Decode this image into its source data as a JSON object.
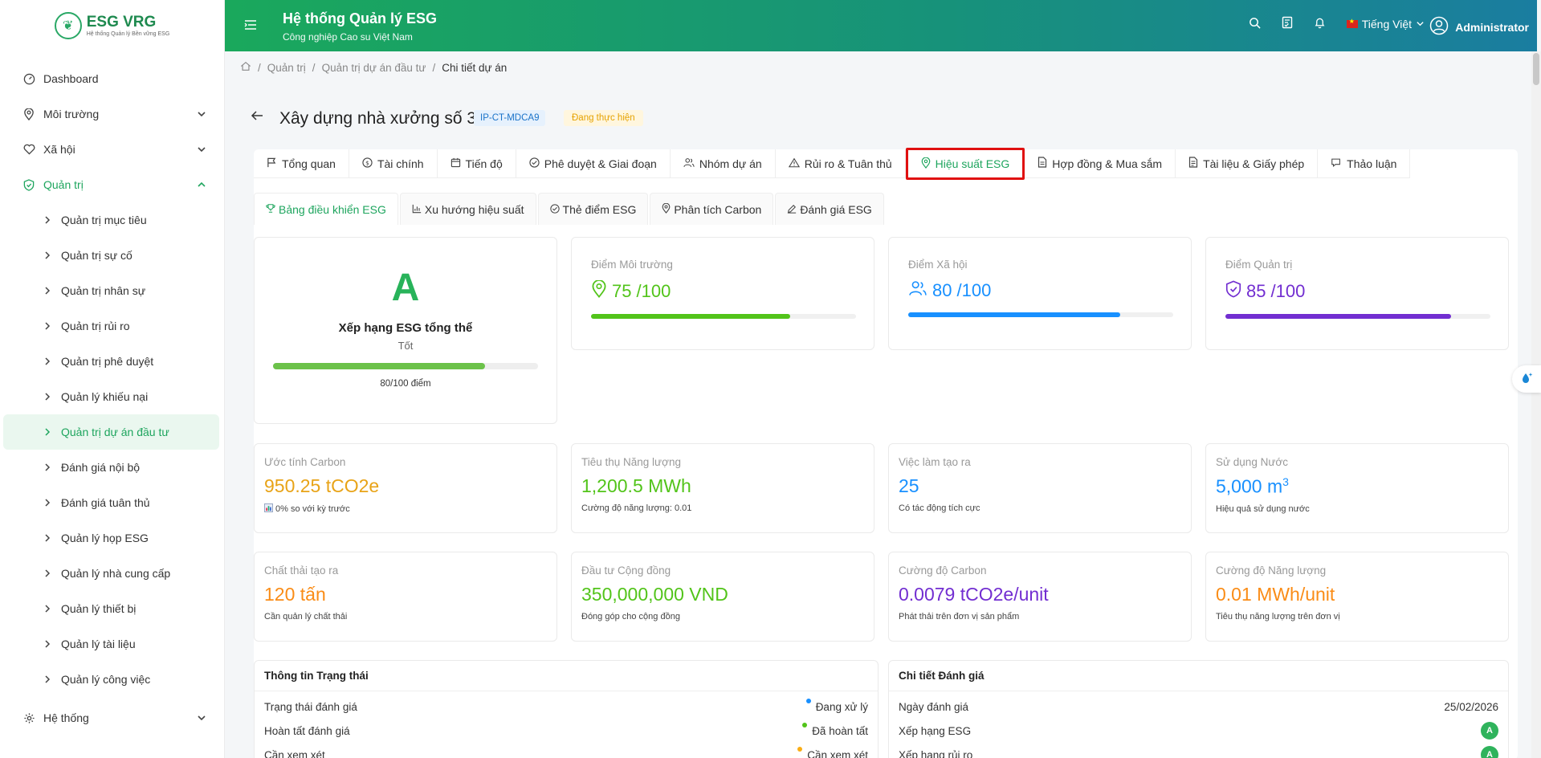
{
  "brand": {
    "name": "ESG VRG",
    "tagline": "Hệ thống Quản lý Bền vững ESG"
  },
  "header": {
    "title": "Hệ thống Quản lý ESG",
    "subtitle": "Công nghiệp Cao su Việt Nam",
    "language": "Tiếng Việt",
    "user": "Administrator"
  },
  "sidebar": {
    "items": [
      {
        "label": "Dashboard"
      },
      {
        "label": "Môi trường"
      },
      {
        "label": "Xã hội"
      },
      {
        "label": "Quản trị"
      }
    ],
    "sub_items": [
      "Quản trị mục tiêu",
      "Quản trị sự cố",
      "Quản trị nhân sự",
      "Quản trị rủi ro",
      "Quản trị phê duyệt",
      "Quản lý khiếu nại",
      "Quản trị dự án đầu tư",
      "Đánh giá nội bộ",
      "Đánh giá tuân thủ",
      "Quản lý họp ESG",
      "Quản lý nhà cung cấp",
      "Quản lý thiết bị",
      "Quản lý tài liệu",
      "Quản lý công việc"
    ],
    "system": "Hệ thống"
  },
  "breadcrumb": [
    "Quản trị",
    "Quản trị dự án đầu tư",
    "Chi tiết dự án"
  ],
  "project": {
    "title": "Xây dựng nhà xưởng số 3",
    "code": "IP-CT-MDCA9",
    "status": "Đang thực hiện"
  },
  "tabs": [
    "Tổng quan",
    "Tài chính",
    "Tiến độ",
    "Phê duyệt & Giai đoạn",
    "Nhóm dự án",
    "Rủi ro & Tuân thủ",
    "Hiệu suất ESG",
    "Hợp đồng & Mua sắm",
    "Tài liệu & Giấy phép",
    "Thảo luận"
  ],
  "subtabs": [
    "Bảng điều khiển ESG",
    "Xu hướng hiệu suất",
    "Thẻ điểm ESG",
    "Phân tích Carbon",
    "Đánh giá ESG"
  ],
  "overall": {
    "grade": "A",
    "title": "Xếp hạng ESG tổng thể",
    "rating": "Tốt",
    "score_text": "80/100 điểm",
    "score_pct": 80
  },
  "scores": [
    {
      "label": "Điểm Môi trường",
      "value": "75",
      "max": "/100",
      "pct": 75,
      "color": "#52c41a"
    },
    {
      "label": "Điểm Xã hội",
      "value": "80",
      "max": "/100",
      "pct": 80,
      "color": "#1890ff"
    },
    {
      "label": "Điểm Quản trị",
      "value": "85",
      "max": "/100",
      "pct": 85,
      "color": "#722ed1"
    }
  ],
  "metrics": [
    {
      "label": "Ước tính Carbon",
      "value": "950.25 tCO2e",
      "note": "0% so với kỳ trước",
      "color": "#e8a317"
    },
    {
      "label": "Tiêu thụ Năng lượng",
      "value": "1,200.5 MWh",
      "note": "Cường độ năng lượng: 0.01",
      "color": "#52c41a"
    },
    {
      "label": "Việc làm tạo ra",
      "value": "25",
      "note": "Có tác động tích cực",
      "color": "#1890ff"
    },
    {
      "label": "Sử dụng Nước",
      "value": "5,000 m",
      "sup": "3",
      "note": "Hiệu quả sử dụng nước",
      "color": "#1890ff"
    },
    {
      "label": "Chất thải tạo ra",
      "value": "120 tấn",
      "note": "Cần quản lý chất thải",
      "color": "#fa8c16"
    },
    {
      "label": "Đầu tư Cộng đồng",
      "value": "350,000,000 VND",
      "note": "Đóng góp cho cộng đồng",
      "color": "#52c41a"
    },
    {
      "label": "Cường độ Carbon",
      "value": "0.0079 tCO2e/unit",
      "note": "Phát thải trên đơn vị sản phẩm",
      "color": "#722ed1"
    },
    {
      "label": "Cường độ Năng lượng",
      "value": "0.01 MWh/unit",
      "note": "Tiêu thụ năng lượng trên đơn vị",
      "color": "#fa8c16"
    }
  ],
  "status_info": {
    "title": "Thông tin Trạng thái",
    "rows": [
      {
        "label": "Trạng thái đánh giá",
        "value": "Đang xử lý",
        "color": "#1890ff"
      },
      {
        "label": "Hoàn tất đánh giá",
        "value": "Đã hoàn tất",
        "color": "#52c41a"
      },
      {
        "label": "Cần xem xét",
        "value": "Cần xem xét",
        "color": "#faad14"
      }
    ]
  },
  "eval_detail": {
    "title": "Chi tiết Đánh giá",
    "rows": [
      {
        "label": "Ngày đánh giá",
        "value": "25/02/2026"
      },
      {
        "label": "Xếp hạng ESG",
        "value": "A"
      },
      {
        "label": "Xếp hạng rủi ro",
        "value": "A"
      }
    ]
  }
}
